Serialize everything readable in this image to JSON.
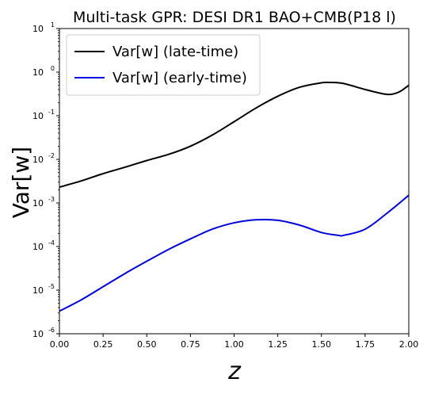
{
  "chart_data": {
    "type": "line",
    "title": "Multi-task GPR: DESI DR1 BAO+CMB(P18 l)",
    "xlabel": "z",
    "ylabel": "Var[w]",
    "xlim": [
      0.0,
      2.0
    ],
    "ylim": [
      1e-06,
      10
    ],
    "yscale": "log",
    "grid": false,
    "legend_position": "top-left",
    "x_ticks": [
      "0.00",
      "0.25",
      "0.50",
      "0.75",
      "1.00",
      "1.25",
      "1.50",
      "1.75",
      "2.00"
    ],
    "y_ticks": [
      {
        "base": "10",
        "exp": "-6"
      },
      {
        "base": "10",
        "exp": "-5"
      },
      {
        "base": "10",
        "exp": "-4"
      },
      {
        "base": "10",
        "exp": "-3"
      },
      {
        "base": "10",
        "exp": "-2"
      },
      {
        "base": "10",
        "exp": "-1"
      },
      {
        "base": "10",
        "exp": "0"
      },
      {
        "base": "10",
        "exp": "1"
      }
    ],
    "series": [
      {
        "name": "Var[w] (late-time)",
        "color": "#000000",
        "x": [
          0.0,
          0.125,
          0.25,
          0.375,
          0.5,
          0.625,
          0.75,
          0.875,
          1.0,
          1.125,
          1.25,
          1.375,
          1.5,
          1.55,
          1.625,
          1.75,
          1.85,
          1.9,
          1.95,
          2.0
        ],
        "y": [
          0.0023,
          0.0032,
          0.0047,
          0.0066,
          0.0094,
          0.013,
          0.02,
          0.036,
          0.073,
          0.15,
          0.28,
          0.45,
          0.57,
          0.58,
          0.55,
          0.4,
          0.32,
          0.31,
          0.36,
          0.5
        ]
      },
      {
        "name": "Var[w] (early-time)",
        "color": "#0000dd",
        "x": [
          0.0,
          0.125,
          0.25,
          0.375,
          0.5,
          0.625,
          0.75,
          0.875,
          1.0,
          1.125,
          1.25,
          1.375,
          1.5,
          1.6,
          1.625,
          1.75,
          1.875,
          2.0
        ],
        "y": [
          3.3e-06,
          6e-06,
          1.2e-05,
          2.4e-05,
          4.6e-05,
          8.6e-05,
          0.00015,
          0.00025,
          0.00035,
          0.00041,
          0.0004,
          0.00031,
          0.00021,
          0.00018,
          0.00018,
          0.00025,
          0.00058,
          0.0015
        ]
      }
    ]
  }
}
